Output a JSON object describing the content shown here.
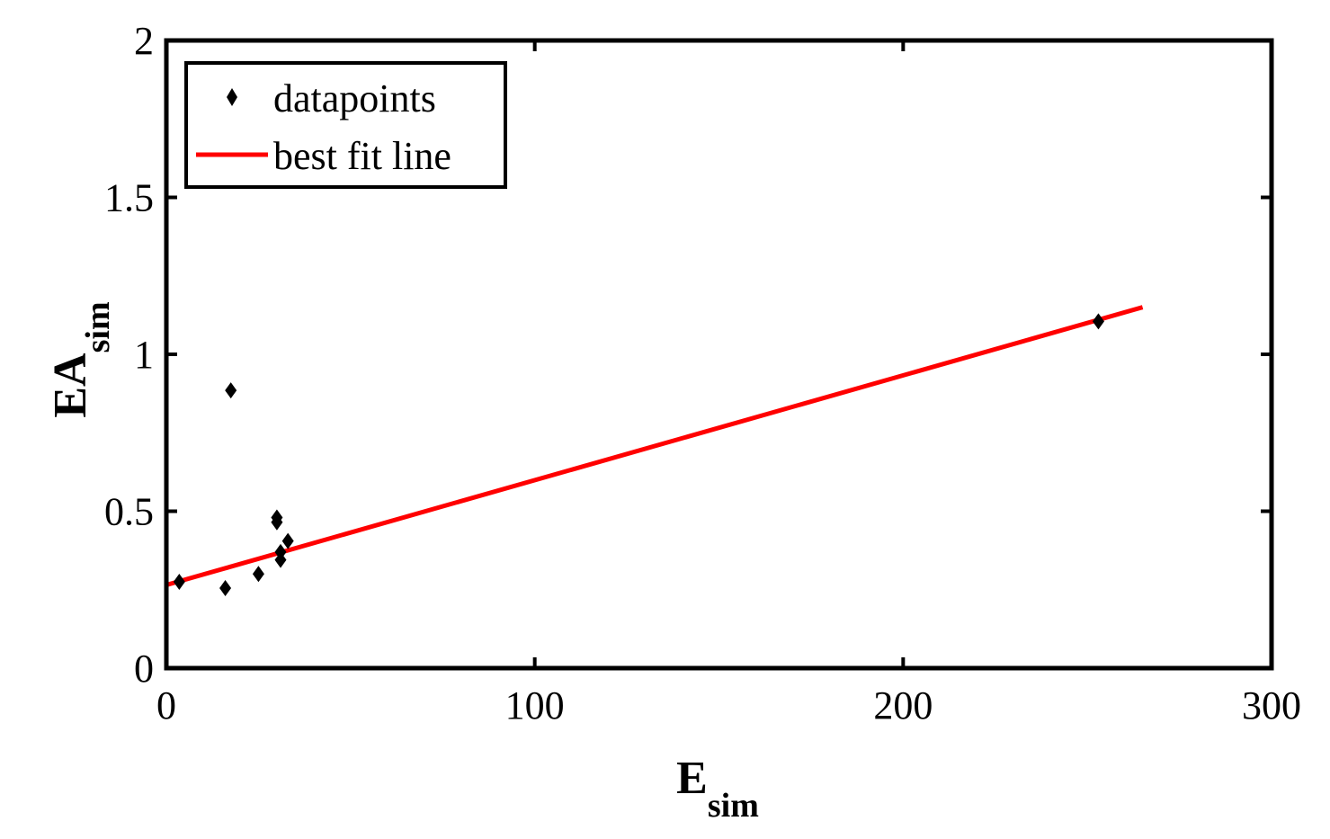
{
  "chart_data": {
    "type": "scatter",
    "title": "",
    "xlabel": {
      "main": "E",
      "sub": "sim"
    },
    "ylabel": {
      "main": "EA",
      "sub": "sim"
    },
    "xlim": [
      0,
      300
    ],
    "ylim": [
      0,
      2
    ],
    "xticks": [
      "0",
      "100",
      "200",
      "300"
    ],
    "yticks": [
      "0",
      "0.5",
      "1",
      "1.5",
      "2"
    ],
    "xtick_values": [
      0,
      100,
      200,
      300
    ],
    "ytick_values": [
      0,
      0.5,
      1,
      1.5,
      2
    ],
    "grid": false,
    "legend_position": "top-left",
    "series": [
      {
        "name": "datapoints",
        "kind": "scatter",
        "marker": "diamond",
        "color": "#000000",
        "points": [
          [
            3.5,
            0.275
          ],
          [
            16,
            0.255
          ],
          [
            17.5,
            0.885
          ],
          [
            25,
            0.3
          ],
          [
            30,
            0.48
          ],
          [
            30,
            0.465
          ],
          [
            31,
            0.345
          ],
          [
            31,
            0.37
          ],
          [
            33,
            0.405
          ],
          [
            253,
            1.105
          ]
        ]
      },
      {
        "name": "best fit line",
        "kind": "line",
        "color": "#ff0000",
        "points": [
          [
            0,
            0.265
          ],
          [
            265,
            1.15
          ]
        ]
      }
    ]
  }
}
